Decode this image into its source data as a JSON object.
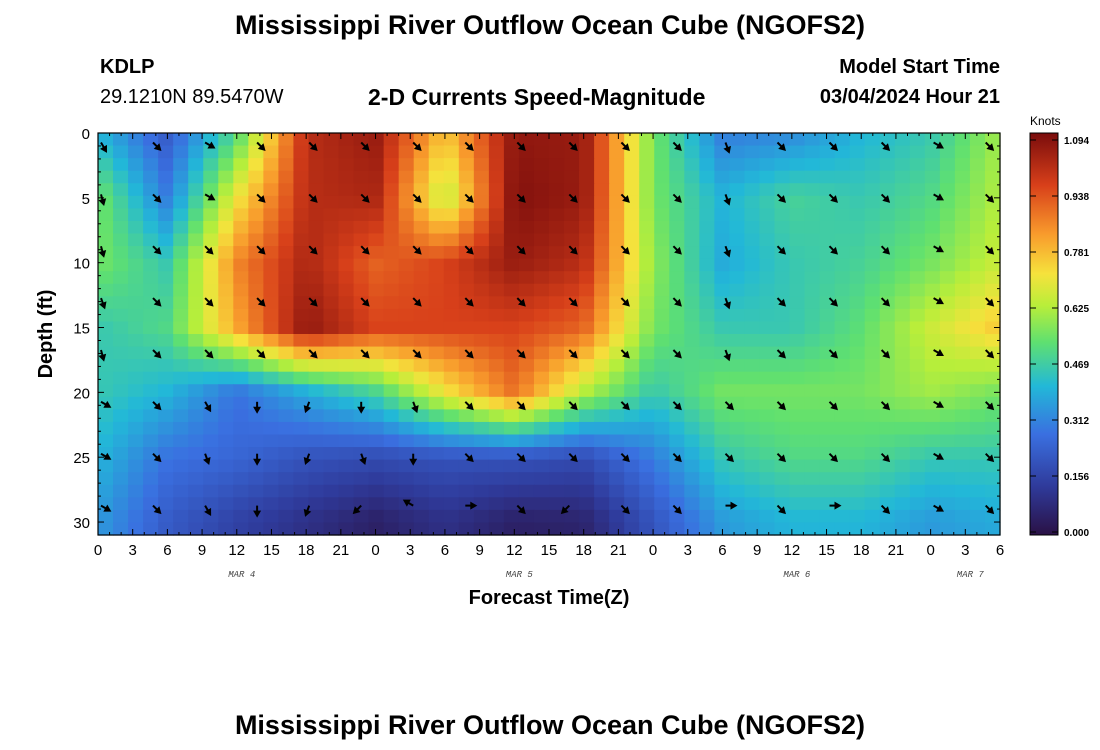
{
  "header": {
    "title": "Mississippi River Outflow Ocean Cube (NGOFS2)",
    "station": "KDLP",
    "coords": "29.1210N  89.5470W",
    "subtitle": "2-D Currents Speed-Magnitude",
    "model_start_label": "Model Start Time",
    "model_start_value": "03/04/2024 Hour 21"
  },
  "footer": {
    "title": "Mississippi River Outflow Ocean Cube (NGOFS2)"
  },
  "chart_data": {
    "type": "heatmap",
    "title": "2-D Currents Speed-Magnitude",
    "xlabel": "Forecast Time(Z)",
    "ylabel": "Depth (ft)",
    "x_tick_labels": [
      "0",
      "3",
      "6",
      "9",
      "12",
      "15",
      "18",
      "21",
      "0",
      "3",
      "6",
      "9",
      "12",
      "15",
      "18",
      "21",
      "0",
      "3",
      "6",
      "9",
      "12",
      "15",
      "18",
      "21",
      "0",
      "3",
      "6"
    ],
    "x_range_hours": [
      0,
      78
    ],
    "date_labels": [
      {
        "text": "MAR 4",
        "hour": 12
      },
      {
        "text": "MAR 5",
        "hour": 36
      },
      {
        "text": "MAR 6",
        "hour": 60
      },
      {
        "text": "MAR 7",
        "hour": 75
      }
    ],
    "y_ticks": [
      0,
      5,
      10,
      15,
      20,
      25,
      30
    ],
    "y_tick_labels": [
      "0",
      "5",
      "10",
      "15",
      "20",
      "25",
      "30"
    ],
    "y_range": [
      0,
      31
    ],
    "colorbar": {
      "title": "Knots",
      "min": 0.0,
      "max": 1.094,
      "tick_labels": [
        "1.094",
        "0.938",
        "0.781",
        "0.625",
        "0.469",
        "0.312",
        "0.156",
        "0.000"
      ]
    },
    "grid_hours": [
      0,
      6,
      12,
      18,
      24,
      30,
      36,
      42,
      48,
      54,
      60,
      66,
      72,
      78
    ],
    "grid_depths": [
      0,
      5,
      10,
      15,
      20,
      25,
      30
    ],
    "speed_knots": [
      [
        0.4,
        0.22,
        0.5,
        1.0,
        1.05,
        0.75,
        1.06,
        1.05,
        0.55,
        0.3,
        0.32,
        0.4,
        0.45,
        0.6
      ],
      [
        0.55,
        0.3,
        0.7,
        1.0,
        1.02,
        0.62,
        1.08,
        1.05,
        0.55,
        0.4,
        0.48,
        0.45,
        0.5,
        0.62
      ],
      [
        0.55,
        0.45,
        0.85,
        1.02,
        0.9,
        0.95,
        1.05,
        1.0,
        0.58,
        0.38,
        0.45,
        0.48,
        0.55,
        0.65
      ],
      [
        0.45,
        0.5,
        0.8,
        1.06,
        0.95,
        0.95,
        0.95,
        0.9,
        0.55,
        0.45,
        0.45,
        0.52,
        0.65,
        0.75
      ],
      [
        0.45,
        0.4,
        0.28,
        0.38,
        0.48,
        0.7,
        0.88,
        0.62,
        0.45,
        0.55,
        0.55,
        0.55,
        0.6,
        0.55
      ],
      [
        0.4,
        0.28,
        0.25,
        0.2,
        0.18,
        0.2,
        0.2,
        0.18,
        0.3,
        0.45,
        0.5,
        0.5,
        0.45,
        0.45
      ],
      [
        0.35,
        0.22,
        0.15,
        0.1,
        0.05,
        0.1,
        0.05,
        0.06,
        0.2,
        0.35,
        0.4,
        0.4,
        0.35,
        0.38
      ]
    ],
    "arrow_hours": [
      0,
      4.5,
      9,
      13.5,
      18,
      22.5,
      27,
      31.5,
      36,
      40.5,
      45,
      49.5,
      54,
      58.5,
      63,
      67.5,
      72,
      76.5
    ],
    "arrow_depths": [
      0.5,
      4.5,
      8.5,
      12.5,
      16.5,
      20.5,
      24.5,
      28.5
    ],
    "arrow_directions_deg": [
      [
        150,
        135,
        120,
        135,
        135,
        135,
        135,
        135,
        135,
        135,
        135,
        135,
        160,
        135,
        135,
        135,
        120,
        135
      ],
      [
        165,
        135,
        120,
        135,
        135,
        135,
        135,
        135,
        135,
        135,
        135,
        135,
        160,
        135,
        135,
        135,
        120,
        135
      ],
      [
        165,
        135,
        135,
        135,
        135,
        135,
        135,
        135,
        135,
        135,
        135,
        135,
        160,
        135,
        135,
        135,
        120,
        135
      ],
      [
        160,
        135,
        135,
        135,
        135,
        135,
        135,
        135,
        135,
        135,
        135,
        135,
        160,
        135,
        135,
        135,
        120,
        135
      ],
      [
        165,
        135,
        135,
        135,
        135,
        135,
        135,
        135,
        135,
        135,
        135,
        135,
        160,
        135,
        135,
        135,
        120,
        135
      ],
      [
        120,
        135,
        150,
        180,
        200,
        180,
        160,
        135,
        135,
        135,
        135,
        135,
        135,
        135,
        135,
        135,
        120,
        135
      ],
      [
        120,
        135,
        160,
        180,
        200,
        160,
        180,
        135,
        135,
        135,
        135,
        135,
        135,
        135,
        135,
        135,
        120,
        135
      ],
      [
        120,
        135,
        150,
        180,
        200,
        225,
        300,
        90,
        135,
        225,
        135,
        135,
        90,
        135,
        90,
        135,
        120,
        135
      ]
    ]
  }
}
